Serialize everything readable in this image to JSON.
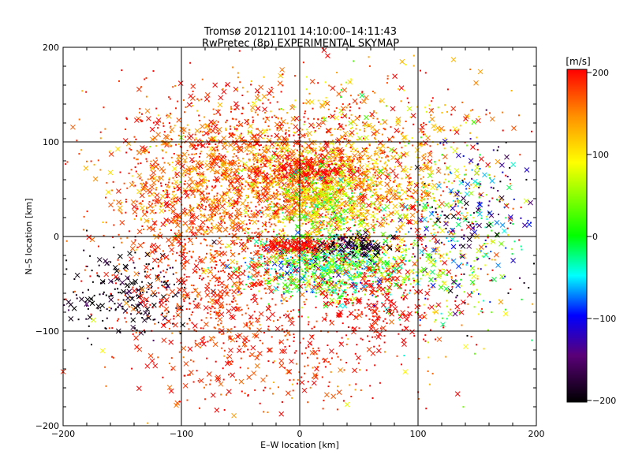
{
  "chart_data": {
    "type": "scatter",
    "title": "Tromsø 20121101 14:10:00–14:11:43",
    "subtitle": "RwPretec (8p) EXPERIMENTAL SKYMAP",
    "xlabel": "E–W location [km]",
    "ylabel": "N–S location [km]",
    "xlim": [
      -200,
      200
    ],
    "ylim": [
      -200,
      200
    ],
    "xticks": [
      "−200",
      "−100",
      "0",
      "100",
      "200"
    ],
    "yticks": [
      "−200",
      "−100",
      "0",
      "100",
      "200"
    ],
    "grid": true,
    "marker_types": [
      "dot",
      "cross"
    ],
    "colorbar": {
      "label": "[m/s]",
      "range": [
        -200,
        200
      ],
      "ticks": [
        "200",
        "100",
        "0",
        "−100",
        "−200"
      ],
      "colormap": [
        "#000000",
        "#5a0078",
        "#0000ff",
        "#00ffff",
        "#00ff00",
        "#ffff00",
        "#ff9000",
        "#ff0000"
      ]
    },
    "clusters": [
      {
        "x": 0,
        "y": 55,
        "sx": 65,
        "sy": 35,
        "count": 2000,
        "velocity": 150,
        "spread": 40
      },
      {
        "x": -90,
        "y": 40,
        "sx": 40,
        "sy": 40,
        "count": 500,
        "velocity": 175,
        "spread": 25
      },
      {
        "x": 10,
        "y": 70,
        "sx": 18,
        "sy": 8,
        "count": 220,
        "velocity": 200,
        "spread": 10
      },
      {
        "x": 25,
        "y": 40,
        "sx": 25,
        "sy": 25,
        "count": 500,
        "velocity": 70,
        "spread": 50
      },
      {
        "x": 25,
        "y": -30,
        "sx": 35,
        "sy": 18,
        "count": 850,
        "velocity": 10,
        "spread": 70
      },
      {
        "x": -5,
        "y": -9,
        "sx": 18,
        "sy": 4,
        "count": 180,
        "velocity": 200,
        "spread": 8
      },
      {
        "x": 45,
        "y": -10,
        "sx": 18,
        "sy": 6,
        "count": 150,
        "velocity": -180,
        "spread": 20
      },
      {
        "x": -150,
        "y": -60,
        "sx": 28,
        "sy": 22,
        "count": 230,
        "velocity": -190,
        "spread": 20
      },
      {
        "x": -70,
        "y": -60,
        "sx": 45,
        "sy": 40,
        "count": 650,
        "velocity": 185,
        "spread": 20
      },
      {
        "x": 60,
        "y": -70,
        "sx": 30,
        "sy": 28,
        "count": 280,
        "velocity": 200,
        "spread": 15
      },
      {
        "x": 120,
        "y": -10,
        "sx": 40,
        "sy": 50,
        "count": 450,
        "velocity": 60,
        "spread": 110
      },
      {
        "x": -60,
        "y": 120,
        "sx": 55,
        "sy": 30,
        "count": 300,
        "velocity": 180,
        "spread": 30
      },
      {
        "x": 60,
        "y": 120,
        "sx": 55,
        "sy": 30,
        "count": 260,
        "velocity": 140,
        "spread": 60
      },
      {
        "x": 150,
        "y": 30,
        "sx": 25,
        "sy": 40,
        "count": 150,
        "velocity": -120,
        "spread": 60
      },
      {
        "x": -20,
        "y": -140,
        "sx": 60,
        "sy": 25,
        "count": 200,
        "velocity": 185,
        "spread": 30
      }
    ]
  }
}
